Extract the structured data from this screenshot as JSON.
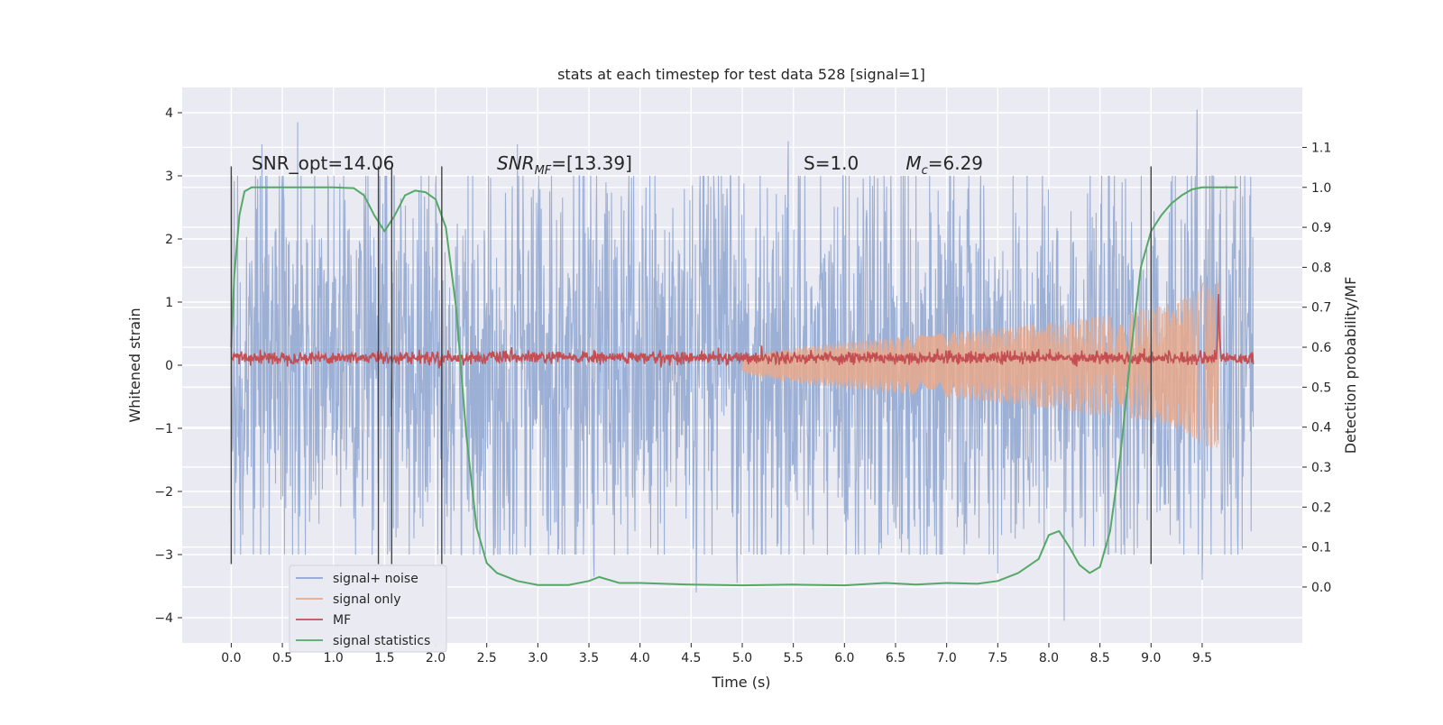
{
  "chart_data": {
    "type": "line",
    "title": "stats at each timestep for test data 528 [signal=1]",
    "xlabel": "Time (s)",
    "ylabel_left": "Whitened strain",
    "ylabel_right": "Detection probability/MF",
    "xlim": [
      -0.48,
      10.48
    ],
    "ylim_left": [
      -4.4,
      4.4
    ],
    "ylim_right": [
      -0.14,
      1.25
    ],
    "x_ticks": [
      "0.0",
      "0.5",
      "1.0",
      "1.5",
      "2.0",
      "2.5",
      "3.0",
      "3.5",
      "4.0",
      "4.5",
      "5.0",
      "5.5",
      "6.0",
      "6.5",
      "7.0",
      "7.5",
      "8.0",
      "8.5",
      "9.0",
      "9.5"
    ],
    "y_left_ticks": [
      "4",
      "3",
      "2",
      "1",
      "0",
      "−1",
      "−2",
      "−3",
      "−4"
    ],
    "y_right_ticks": [
      "1.1",
      "1.0",
      "0.9",
      "0.8",
      "0.7",
      "0.6",
      "0.5",
      "0.4",
      "0.3",
      "0.2",
      "0.1",
      "0.0"
    ],
    "grid": true,
    "legend_position": "lower-left",
    "annotations": [
      {
        "text": "SNR_opt=14.06",
        "x": 0.2,
        "y": 3.1
      },
      {
        "text": "SNR",
        "sub": "MF",
        "suffix": "=[13.39]",
        "x": 2.6,
        "y": 3.1
      },
      {
        "text": "S",
        "suffix": "=1.0",
        "x": 5.6,
        "y": 3.1
      },
      {
        "text": "M",
        "sub": "c",
        "suffix": "=6.29",
        "x": 6.6,
        "y": 3.1
      }
    ],
    "vertical_lines_x": [
      0.0,
      1.44,
      1.57,
      2.06,
      9.0
    ],
    "series": [
      {
        "name": "signal+ noise",
        "color": "#8ea4cf",
        "axis": "left",
        "description": "whitened noisy strain, envelope approx ±2.5 with spikes to ±4",
        "x_range": [
          0.0,
          10.0
        ],
        "approx_amplitude": 2.4,
        "spikes": [
          {
            "x": 0.65,
            "y": 3.85
          },
          {
            "x": 0.3,
            "y": 3.5
          },
          {
            "x": 2.8,
            "y": 3.5
          },
          {
            "x": 5.45,
            "y": 3.55
          },
          {
            "x": 9.45,
            "y": 4.05
          },
          {
            "x": 4.55,
            "y": -3.6
          },
          {
            "x": 4.95,
            "y": -3.45
          },
          {
            "x": 8.15,
            "y": -4.05
          },
          {
            "x": 3.55,
            "y": -3.35
          },
          {
            "x": 9.5,
            "y": -3.4
          },
          {
            "x": 7.5,
            "y": -3.3
          }
        ]
      },
      {
        "name": "signal only",
        "color": "#e8a98c",
        "axis": "left",
        "description": "chirp signal growing in amplitude until merger",
        "envelope": {
          "start_x": 5.0,
          "end_x": 9.66,
          "end_amplitude": 1.2
        }
      },
      {
        "name": "MF",
        "color": "#c44e52",
        "axis": "left",
        "description": "matched-filter output, baseline ~0.12 with peak near merger",
        "baseline": 0.12,
        "noise": 0.05,
        "peak": {
          "x": 9.66,
          "y": 1.0
        }
      },
      {
        "name": "signal statistics",
        "color": "#55a868",
        "axis": "right",
        "x": [
          0.0,
          0.03,
          0.08,
          0.13,
          0.2,
          0.3,
          0.5,
          0.8,
          1.0,
          1.2,
          1.3,
          1.4,
          1.5,
          1.6,
          1.7,
          1.8,
          1.9,
          2.0,
          2.1,
          2.2,
          2.3,
          2.4,
          2.5,
          2.6,
          2.8,
          3.0,
          3.3,
          3.5,
          3.6,
          3.8,
          4.0,
          4.5,
          5.0,
          5.5,
          6.0,
          6.4,
          6.7,
          7.0,
          7.3,
          7.5,
          7.7,
          7.9,
          8.0,
          8.1,
          8.2,
          8.3,
          8.4,
          8.5,
          8.6,
          8.7,
          8.8,
          8.9,
          9.0,
          9.1,
          9.2,
          9.3,
          9.4,
          9.5,
          9.6,
          9.7,
          9.85
        ],
        "values": [
          0.6,
          0.78,
          0.93,
          0.99,
          1.0,
          1.0,
          1.0,
          1.0,
          1.0,
          0.998,
          0.98,
          0.93,
          0.89,
          0.93,
          0.98,
          0.992,
          0.988,
          0.97,
          0.9,
          0.7,
          0.38,
          0.15,
          0.06,
          0.035,
          0.015,
          0.005,
          0.005,
          0.015,
          0.025,
          0.01,
          0.01,
          0.006,
          0.004,
          0.006,
          0.004,
          0.01,
          0.006,
          0.01,
          0.008,
          0.015,
          0.035,
          0.07,
          0.13,
          0.14,
          0.1,
          0.055,
          0.035,
          0.05,
          0.14,
          0.33,
          0.58,
          0.8,
          0.89,
          0.93,
          0.96,
          0.98,
          0.995,
          1.0,
          1.0,
          1.0,
          1.0
        ]
      }
    ]
  }
}
